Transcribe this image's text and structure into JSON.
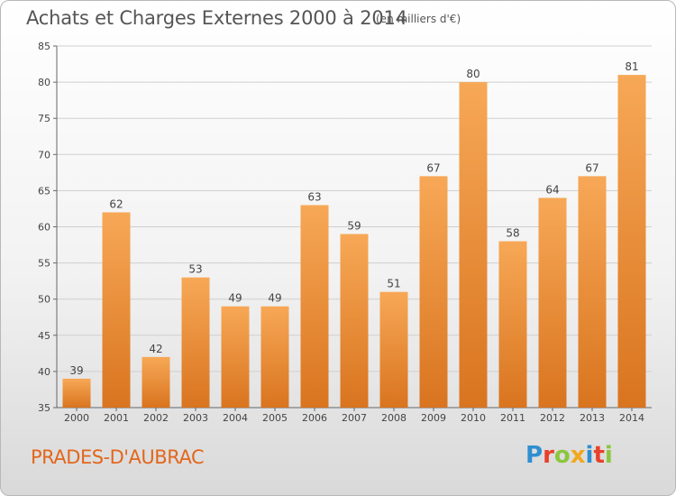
{
  "header": {
    "title": "Achats et Charges Externes 2000 à 2014",
    "unit": "(en milliers d'€)"
  },
  "footer": {
    "commune": "PRADES-D'AUBRAC",
    "brand": "Proxiti",
    "brand_colors": [
      "#2f8fd0",
      "#e8412c",
      "#8cc63e",
      "#f2a81d",
      "#2f8fd0",
      "#e8412c",
      "#8cc63e"
    ]
  },
  "chart_data": {
    "type": "bar",
    "title": "Achats et Charges Externes 2000 à 2014",
    "subtitle": "(en milliers d'€)",
    "categories": [
      "2000",
      "2001",
      "2002",
      "2003",
      "2004",
      "2005",
      "2006",
      "2007",
      "2008",
      "2009",
      "2010",
      "2011",
      "2012",
      "2013",
      "2014"
    ],
    "values": [
      39,
      62,
      42,
      53,
      49,
      49,
      63,
      59,
      51,
      67,
      80,
      58,
      64,
      67,
      81
    ],
    "ylim": [
      35,
      85
    ],
    "yticks": [
      35,
      40,
      45,
      50,
      55,
      60,
      65,
      70,
      75,
      80,
      85
    ],
    "grid": true,
    "bar_color_light": "#f7a856",
    "bar_color_dark": "#d9741f",
    "grid_color": "#cfcfcf"
  }
}
